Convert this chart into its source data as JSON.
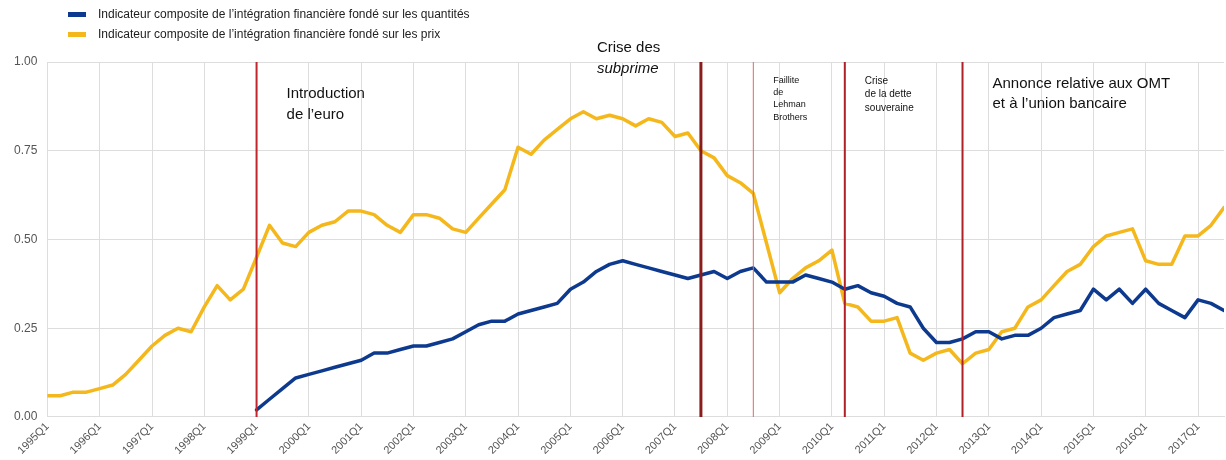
{
  "chart_data": {
    "type": "line",
    "x": [
      "1995-01",
      "1995-04",
      "1995-07",
      "1995-10",
      "1996-01",
      "1996-04",
      "1996-07",
      "1996-10",
      "1997-01",
      "1997-04",
      "1997-07",
      "1997-10",
      "1998-01",
      "1998-04",
      "1998-07",
      "1998-10",
      "1999-01",
      "1999-04",
      "1999-07",
      "1999-10",
      "2000-01",
      "2000-04",
      "2000-07",
      "2000-10",
      "2001-01",
      "2001-04",
      "2001-07",
      "2001-10",
      "2002-01",
      "2002-04",
      "2002-07",
      "2002-10",
      "2003-01",
      "2003-04",
      "2003-07",
      "2003-10",
      "2004-01",
      "2004-04",
      "2004-07",
      "2004-10",
      "2005-01",
      "2005-04",
      "2005-07",
      "2005-10",
      "2006-01",
      "2006-04",
      "2006-07",
      "2006-10",
      "2007-01",
      "2007-04",
      "2007-07",
      "2007-10",
      "2008-01",
      "2008-04",
      "2008-07",
      "2008-10",
      "2009-01",
      "2009-04",
      "2009-07",
      "2009-10",
      "2010-01",
      "2010-04",
      "2010-07",
      "2010-10",
      "2011-01",
      "2011-04",
      "2011-07",
      "2011-10",
      "2012-01",
      "2012-04",
      "2012-07",
      "2012-10",
      "2013-01",
      "2013-04",
      "2013-07",
      "2013-10",
      "2014-01",
      "2014-04",
      "2014-07",
      "2014-10",
      "2015-01",
      "2015-04",
      "2015-07",
      "2015-10",
      "2016-01",
      "2016-04",
      "2016-07",
      "2016-10",
      "2017-01",
      "2017-04",
      "2017-07"
    ],
    "series": [
      {
        "name": "Indicateur composite de l’intégration financière fondé sur les quantités",
        "color": "#0d3a8e",
        "values": [
          null,
          null,
          null,
          null,
          null,
          null,
          null,
          null,
          null,
          null,
          null,
          null,
          null,
          null,
          null,
          null,
          0.02,
          0.05,
          0.08,
          0.11,
          0.12,
          0.13,
          0.14,
          0.15,
          0.16,
          0.18,
          0.18,
          0.19,
          0.2,
          0.2,
          0.21,
          0.22,
          0.24,
          0.26,
          0.27,
          0.27,
          0.29,
          0.3,
          0.31,
          0.32,
          0.36,
          0.38,
          0.41,
          0.43,
          0.44,
          0.43,
          0.42,
          0.41,
          0.4,
          0.39,
          0.4,
          0.41,
          0.39,
          0.41,
          0.42,
          0.38,
          0.38,
          0.38,
          0.4,
          0.39,
          0.38,
          0.36,
          0.37,
          0.35,
          0.34,
          0.32,
          0.31,
          0.25,
          0.21,
          0.21,
          0.22,
          0.24,
          0.24,
          0.22,
          0.23,
          0.23,
          0.25,
          0.28,
          0.29,
          0.3,
          0.36,
          0.33,
          0.36,
          0.32,
          0.36,
          0.32,
          0.3,
          0.28,
          0.33,
          0.32,
          0.3
        ]
      },
      {
        "name": "Indicateur composite de l’intégration financière fondé sur les prix",
        "color": "#f5b81c",
        "values": [
          0.06,
          0.06,
          0.07,
          0.07,
          0.08,
          0.09,
          0.12,
          0.16,
          0.2,
          0.23,
          0.25,
          0.24,
          0.31,
          0.37,
          0.33,
          0.36,
          0.45,
          0.54,
          0.49,
          0.48,
          0.52,
          0.54,
          0.55,
          0.58,
          0.58,
          0.57,
          0.54,
          0.52,
          0.57,
          0.57,
          0.56,
          0.53,
          0.52,
          0.56,
          0.6,
          0.64,
          0.76,
          0.74,
          0.78,
          0.81,
          0.84,
          0.86,
          0.84,
          0.85,
          0.84,
          0.82,
          0.84,
          0.83,
          0.79,
          0.8,
          0.75,
          0.73,
          0.68,
          0.66,
          0.63,
          0.49,
          0.35,
          0.39,
          0.42,
          0.44,
          0.47,
          0.32,
          0.31,
          0.27,
          0.27,
          0.28,
          0.18,
          0.16,
          0.18,
          0.19,
          0.15,
          0.18,
          0.19,
          0.24,
          0.25,
          0.31,
          0.33,
          0.37,
          0.41,
          0.43,
          0.48,
          0.51,
          0.52,
          0.53,
          0.44,
          0.43,
          0.43,
          0.51,
          0.51,
          0.54,
          0.59
        ]
      }
    ],
    "xlim": [
      "1995-01",
      "2017-07"
    ],
    "xticks": [
      {
        "value": "1995-01",
        "label": "1995Q1"
      },
      {
        "value": "1996-01",
        "label": "1996Q1"
      },
      {
        "value": "1997-01",
        "label": "1997Q1"
      },
      {
        "value": "1998-01",
        "label": "1998Q1"
      },
      {
        "value": "1999-01",
        "label": "1999Q1"
      },
      {
        "value": "2000-01",
        "label": "2000Q1"
      },
      {
        "value": "2001-01",
        "label": "2001Q1"
      },
      {
        "value": "2002-01",
        "label": "2002Q1"
      },
      {
        "value": "2003-01",
        "label": "2003Q1"
      },
      {
        "value": "2004-01",
        "label": "2004Q1"
      },
      {
        "value": "2005-01",
        "label": "2005Q1"
      },
      {
        "value": "2006-01",
        "label": "2006Q1"
      },
      {
        "value": "2007-01",
        "label": "2007Q1"
      },
      {
        "value": "2008-01",
        "label": "2008Q1"
      },
      {
        "value": "2009-01",
        "label": "2009Q1"
      },
      {
        "value": "2010-01",
        "label": "2010Q1"
      },
      {
        "value": "2011-01",
        "label": "2011Q1"
      },
      {
        "value": "2012-01",
        "label": "2012Q1"
      },
      {
        "value": "2013-01",
        "label": "2013Q1"
      },
      {
        "value": "2014-01",
        "label": "2014Q1"
      },
      {
        "value": "2015-01",
        "label": "2015Q1"
      },
      {
        "value": "2016-01",
        "label": "2016Q1"
      },
      {
        "value": "2017-01",
        "label": "2017Q1"
      }
    ],
    "ylim": [
      0,
      1
    ],
    "yticks": [
      {
        "value": 0,
        "label": "0.00"
      },
      {
        "value": 0.25,
        "label": "0.25"
      },
      {
        "value": 0.5,
        "label": "0.50"
      },
      {
        "value": 0.75,
        "label": "0.75"
      },
      {
        "value": 1,
        "label": "1.00"
      }
    ],
    "ref_lines": [
      {
        "axis": "x",
        "value": "1999-01",
        "label": "Introduction\nde l’euro",
        "color": "#c0272d"
      },
      {
        "axis": "x",
        "value": "2007-07",
        "label": "Crise des\nsubprime",
        "color": "#8b1c1c"
      },
      {
        "axis": "x",
        "value": "2008-07",
        "label": "Faillite\nde\nLehman\nBrothers",
        "color": "#e06666"
      },
      {
        "axis": "x",
        "value": "2010-04",
        "label": "Crise\nde la dette\nsouveraine",
        "color": "#b02026"
      },
      {
        "axis": "x",
        "value": "2012-07",
        "label": "Annonce relative aux OMT\net à l’union bancaire",
        "color": "#b02026"
      }
    ],
    "grid": true,
    "legend": "top left",
    "marker": "none",
    "line_style": "solid"
  }
}
